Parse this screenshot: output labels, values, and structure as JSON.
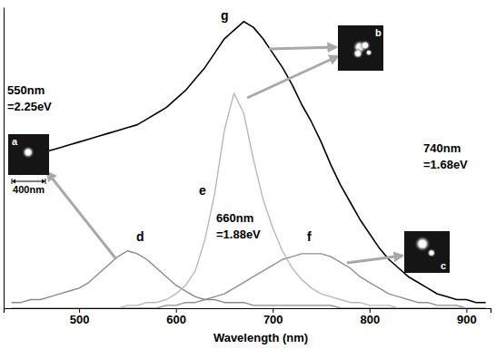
{
  "chart_data": {
    "type": "line",
    "xlabel": "Wavelength (nm)",
    "x": [
      430,
      440,
      450,
      460,
      470,
      480,
      490,
      500,
      510,
      520,
      530,
      540,
      550,
      560,
      570,
      580,
      590,
      600,
      610,
      620,
      630,
      640,
      650,
      660,
      670,
      680,
      690,
      700,
      710,
      720,
      730,
      740,
      750,
      760,
      770,
      780,
      790,
      800,
      810,
      820,
      830,
      840,
      850,
      860,
      870,
      880,
      890,
      900,
      910,
      920
    ],
    "series": [
      {
        "name": "d",
        "color": "#8a8a8a",
        "values": [
          2,
          2,
          3,
          3,
          4,
          5,
          6,
          7,
          9,
          12,
          15,
          18,
          20,
          19,
          17,
          14,
          11,
          8,
          6,
          4,
          3,
          3,
          2,
          2,
          2,
          1,
          1,
          1,
          1,
          1,
          1,
          1,
          1,
          1,
          0,
          0,
          0,
          0,
          0,
          0,
          0,
          0,
          0,
          0,
          0,
          0,
          0,
          0,
          0,
          0
        ]
      },
      {
        "name": "e",
        "color": "#b8b8b8",
        "values": [
          0,
          0,
          0,
          0,
          0,
          0,
          0,
          0,
          0,
          0,
          0,
          0,
          1,
          1,
          2,
          2,
          3,
          5,
          8,
          13,
          24,
          40,
          62,
          75,
          68,
          52,
          38,
          28,
          20,
          14,
          10,
          7,
          5,
          4,
          3,
          2,
          2,
          1,
          1,
          1,
          0,
          0,
          0,
          0,
          0,
          0,
          0,
          0,
          0,
          0
        ]
      },
      {
        "name": "f",
        "color": "#8f8f8f",
        "values": [
          0,
          0,
          0,
          0,
          0,
          0,
          0,
          0,
          0,
          0,
          0,
          0,
          0,
          0,
          0,
          0,
          1,
          1,
          2,
          2,
          3,
          4,
          5,
          7,
          9,
          11,
          13,
          15,
          17,
          18,
          19,
          19,
          19,
          18,
          16,
          14,
          11,
          9,
          7,
          5,
          4,
          3,
          2,
          2,
          1,
          1,
          1,
          0,
          0,
          0
        ]
      },
      {
        "name": "g",
        "color": "#000000",
        "values": [
          50,
          52,
          53,
          54,
          55,
          56,
          57,
          58,
          59,
          60,
          61,
          62,
          63,
          64,
          66,
          68,
          70,
          73,
          76,
          80,
          84,
          89,
          94,
          97,
          100,
          98,
          94,
          89,
          84,
          78,
          71,
          65,
          58,
          50,
          43,
          37,
          31,
          26,
          21,
          17,
          14,
          11,
          9,
          7,
          5,
          4,
          3,
          3,
          2,
          2
        ]
      }
    ],
    "xlim": [
      422,
      925
    ],
    "xticks": [
      500,
      600,
      700,
      800,
      900
    ],
    "ylim": [
      0,
      105
    ],
    "tick_labels": "x",
    "annotations": [
      "550nm =2.25eV",
      "660nm =1.88eV",
      "740nm =1.68eV"
    ],
    "insets": [
      {
        "label": "a",
        "scale_bar": "400nm"
      },
      {
        "label": "b"
      },
      {
        "label": "c"
      }
    ]
  }
}
